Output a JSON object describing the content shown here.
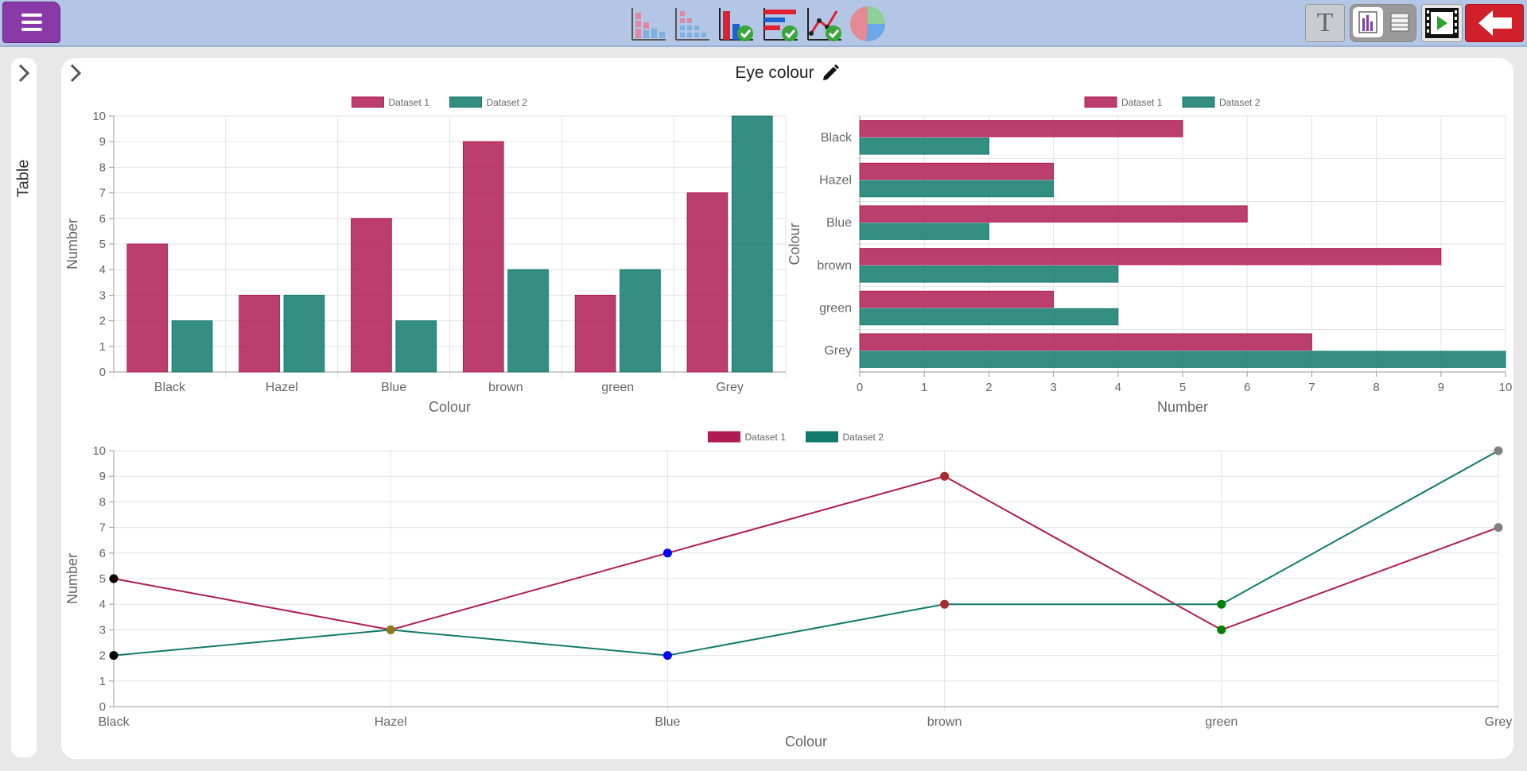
{
  "title": "Eye colour",
  "side_panel": {
    "label": "Table"
  },
  "toolbar": {
    "chart_buttons": [
      {
        "icon": "stacked-bar-chart-icon"
      },
      {
        "icon": "dot-plot-icon"
      },
      {
        "icon": "bar-chart-checked-icon"
      },
      {
        "icon": "horizontal-bar-chart-checked-icon"
      },
      {
        "icon": "line-chart-checked-icon"
      },
      {
        "icon": "pie-chart-icon"
      }
    ],
    "text_tool_glyph": "T",
    "right_icons": [
      "text-tool-icon",
      "chart-view-icon",
      "table-view-icon",
      "slideshow-icon",
      "back-arrow-icon"
    ]
  },
  "colors": {
    "dataset1": "#b01c52",
    "dataset2": "#127a6c",
    "toolbar": "#b3c6e6",
    "menu": "#8a3aa8",
    "back": "#d11f2b"
  },
  "chart_data": [
    {
      "type": "bar",
      "orientation": "vertical",
      "categories": [
        "Black",
        "Hazel",
        "Blue",
        "brown",
        "green",
        "Grey"
      ],
      "series": [
        {
          "name": "Dataset 1",
          "values": [
            5,
            3,
            6,
            9,
            3,
            7
          ]
        },
        {
          "name": "Dataset 2",
          "values": [
            2,
            3,
            2,
            4,
            4,
            10
          ]
        }
      ],
      "xlabel": "Colour",
      "ylabel": "Number",
      "ylim": [
        0,
        10
      ],
      "ticks": [
        "0",
        "1",
        "2",
        "3",
        "4",
        "5",
        "6",
        "7",
        "8",
        "9",
        "10"
      ],
      "grid": true,
      "legend": "top"
    },
    {
      "type": "bar",
      "orientation": "horizontal",
      "categories": [
        "Black",
        "Hazel",
        "Blue",
        "brown",
        "green",
        "Grey"
      ],
      "series": [
        {
          "name": "Dataset 1",
          "values": [
            5,
            3,
            6,
            9,
            3,
            7
          ]
        },
        {
          "name": "Dataset 2",
          "values": [
            2,
            3,
            2,
            4,
            4,
            10
          ]
        }
      ],
      "xlabel": "Number",
      "ylabel": "Colour",
      "xlim": [
        0,
        10
      ],
      "ticks": [
        "0",
        "1",
        "2",
        "3",
        "4",
        "5",
        "6",
        "7",
        "8",
        "9",
        "10"
      ],
      "grid": true,
      "legend": "top"
    },
    {
      "type": "line",
      "categories": [
        "Black",
        "Hazel",
        "Blue",
        "brown",
        "green",
        "Grey"
      ],
      "series": [
        {
          "name": "Dataset 1",
          "values": [
            5,
            3,
            6,
            9,
            3,
            7
          ]
        },
        {
          "name": "Dataset 2",
          "values": [
            2,
            3,
            2,
            4,
            4,
            10
          ]
        }
      ],
      "point_colors": [
        "#000000",
        "#8b7a1a",
        "#0000ff",
        "#a52a2a",
        "#008000",
        "#808080"
      ],
      "xlabel": "Colour",
      "ylabel": "Number",
      "ylim": [
        0,
        10
      ],
      "ticks": [
        "0",
        "1",
        "2",
        "3",
        "4",
        "5",
        "6",
        "7",
        "8",
        "9",
        "10"
      ],
      "grid": true,
      "legend": "top"
    }
  ]
}
